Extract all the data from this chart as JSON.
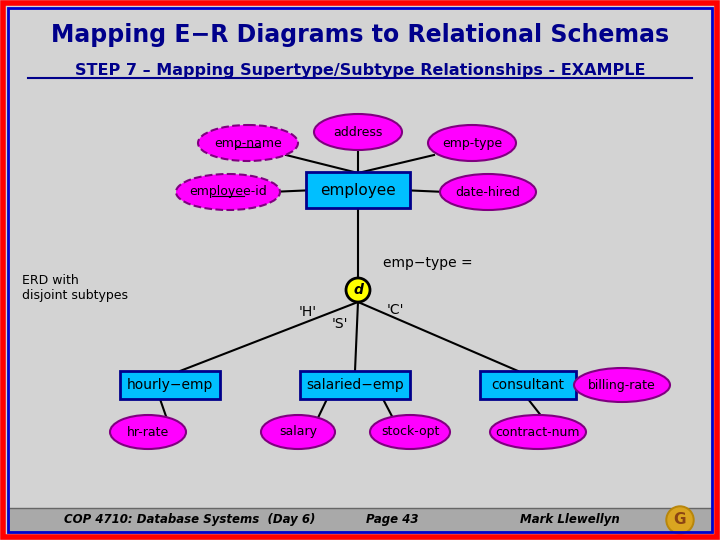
{
  "title": "Mapping E−R Diagrams to Relational Schemas",
  "subtitle": "STEP 7 – Mapping Supertype/Subtype Relationships - EXAMPLE",
  "bg_color": "#d3d3d3",
  "border_outer": "#ff0000",
  "border_inner": "#0000cc",
  "title_color": "#00008b",
  "subtitle_color": "#00008b",
  "entity_fill": "#00bfff",
  "entity_edge": "#00008b",
  "attr_fill": "#ff00ff",
  "attr_edge": "#800080",
  "discriminator_fill": "#ffff00",
  "discriminator_edge": "#000000",
  "line_color": "#000000",
  "text_color": "#000000",
  "footer_bg": "#a9a9a9",
  "footer_text": "#000000",
  "erd_label": "ERD with\ndisjoint subtypes",
  "emp_type_label": "emp−type =",
  "footer_left": "COP 4710: Database Systems  (Day 6)",
  "footer_mid": "Page 43",
  "footer_right": "Mark Llewellyn"
}
